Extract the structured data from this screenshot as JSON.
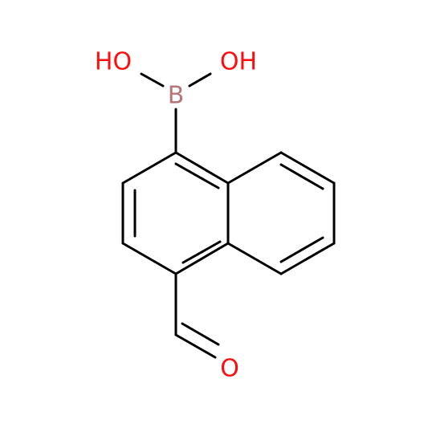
{
  "atoms": [
    {
      "label": "HO"
    },
    {
      "label": "OH"
    },
    {
      "label": "B"
    },
    {
      "label": "O"
    }
  ]
}
